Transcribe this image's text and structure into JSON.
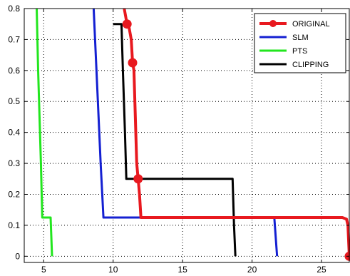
{
  "chart_data": {
    "type": "line",
    "title": "",
    "xlabel": "",
    "ylabel": "",
    "xlim": [
      3.6,
      27
    ],
    "ylim": [
      -0.02,
      0.8
    ],
    "xticks": [
      5,
      10,
      15,
      20,
      25
    ],
    "yticks": [
      0,
      0.1,
      0.2,
      0.3,
      0.4,
      0.5,
      0.6,
      0.7,
      0.8
    ],
    "grid": true,
    "legend_position": "top-right",
    "series": [
      {
        "name": "ORIGINAL",
        "color": "#e8191f",
        "line_width": 4,
        "marker": "circle",
        "points": [
          [
            10.8,
            0.8
          ],
          [
            11.0,
            0.75
          ],
          [
            11.1,
            0.75
          ],
          [
            11.3,
            0.7
          ],
          [
            11.4,
            0.625
          ],
          [
            11.5,
            0.6
          ],
          [
            11.7,
            0.3
          ],
          [
            11.8,
            0.25
          ],
          [
            11.9,
            0.2
          ],
          [
            12.0,
            0.125
          ],
          [
            26.5,
            0.125
          ],
          [
            26.8,
            0.12
          ],
          [
            26.9,
            0.1
          ],
          [
            27.0,
            0
          ]
        ],
        "marker_points": [
          [
            11.0,
            0.75
          ],
          [
            11.4,
            0.625
          ],
          [
            11.8,
            0.25
          ],
          [
            27.0,
            0
          ]
        ]
      },
      {
        "name": "SLM",
        "color": "#1420d2",
        "line_width": 3,
        "points": [
          [
            8.6,
            0.8
          ],
          [
            8.9,
            0.5
          ],
          [
            9.1,
            0.3
          ],
          [
            9.3,
            0.125
          ],
          [
            21.6,
            0.125
          ],
          [
            21.8,
            0
          ]
        ]
      },
      {
        "name": "PTS",
        "color": "#22e61e",
        "line_width": 3,
        "points": [
          [
            4.5,
            0.8
          ],
          [
            4.6,
            0.6
          ],
          [
            4.8,
            0.3
          ],
          [
            4.9,
            0.125
          ],
          [
            5.5,
            0.125
          ],
          [
            5.6,
            0
          ]
        ]
      },
      {
        "name": "CLIPPING",
        "color": "#000000",
        "line_width": 3,
        "points": [
          [
            10.0,
            0.75
          ],
          [
            10.6,
            0.75
          ],
          [
            10.7,
            0.6
          ],
          [
            10.85,
            0.4
          ],
          [
            10.95,
            0.25
          ],
          [
            18.6,
            0.25
          ],
          [
            18.7,
            0.1
          ],
          [
            18.8,
            0
          ]
        ]
      }
    ]
  }
}
